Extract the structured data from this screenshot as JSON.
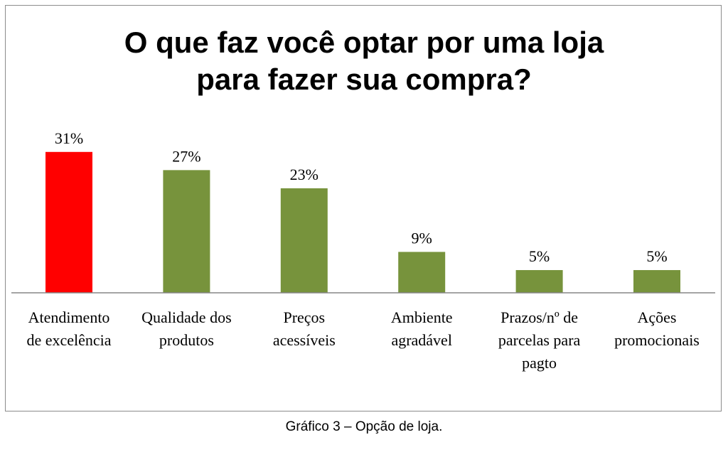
{
  "chart_data": {
    "type": "bar",
    "title_lines": [
      "O que faz você optar por uma loja",
      "para fazer sua compra?"
    ],
    "categories": [
      [
        "Atendimento",
        "de excelência"
      ],
      [
        "Qualidade dos",
        "produtos"
      ],
      [
        "Preços",
        "acessíveis"
      ],
      [
        "Ambiente",
        "agradável"
      ],
      [
        "Prazos/nº de",
        "parcelas para",
        "pagto"
      ],
      [
        "Ações",
        "promocionais"
      ]
    ],
    "values": [
      31,
      27,
      23,
      9,
      5,
      5
    ],
    "data_labels": [
      "31%",
      "27%",
      "23%",
      "9%",
      "5%",
      "5%"
    ],
    "colors": [
      "#ff0000",
      "#77933c",
      "#77933c",
      "#77933c",
      "#77933c",
      "#77933c"
    ],
    "xlabel": "",
    "ylabel": "",
    "ylim": [
      0,
      33
    ],
    "grid": false,
    "legend": "none"
  },
  "caption": "Gráfico 3 – Opção de loja."
}
